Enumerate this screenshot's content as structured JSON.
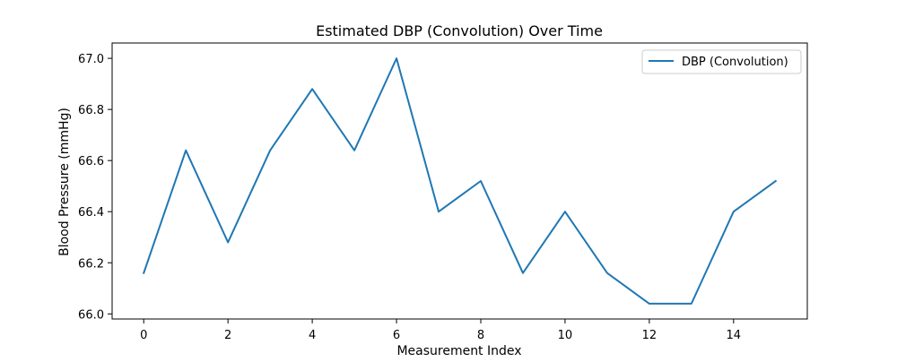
{
  "chart_data": {
    "type": "line",
    "title": "Estimated DBP (Convolution) Over Time",
    "xlabel": "Measurement Index",
    "ylabel": "Blood Pressure (mmHg)",
    "xlim": [
      -0.75,
      15.75
    ],
    "ylim": [
      65.98,
      67.06
    ],
    "xticks": [
      0,
      2,
      4,
      6,
      8,
      10,
      12,
      14
    ],
    "yticks": [
      66.0,
      66.2,
      66.4,
      66.6,
      66.8,
      67.0
    ],
    "grid": false,
    "legend_position": "top-right",
    "series": [
      {
        "name": "DBP (Convolution)",
        "color": "#1f77b4",
        "x": [
          0,
          1,
          2,
          3,
          4,
          5,
          6,
          7,
          8,
          9,
          10,
          11,
          12,
          13,
          14,
          15
        ],
        "y": [
          66.16,
          66.64,
          66.28,
          66.64,
          66.88,
          66.64,
          67.0,
          66.4,
          66.52,
          66.16,
          66.4,
          66.16,
          66.04,
          66.04,
          66.4,
          66.52
        ]
      }
    ]
  }
}
